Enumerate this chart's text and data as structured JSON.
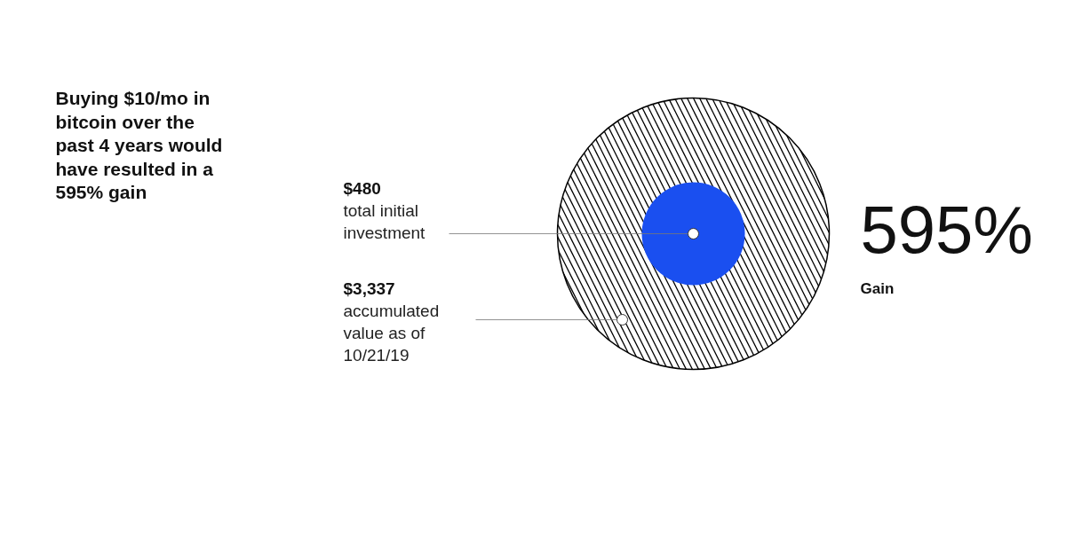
{
  "chart_data": {
    "type": "other",
    "title": "Buying $10/mo in bitcoin over the past 4 years would have resulted in a 595% gain",
    "categories": [
      "total initial investment",
      "accumulated value as of 10/21/19"
    ],
    "values": [
      480,
      3337
    ],
    "value_labels": [
      "$480",
      "$3,337"
    ],
    "colors": [
      "#1a4ff0",
      "#000000"
    ],
    "annotations": [
      "595%",
      "Gain"
    ]
  }
}
